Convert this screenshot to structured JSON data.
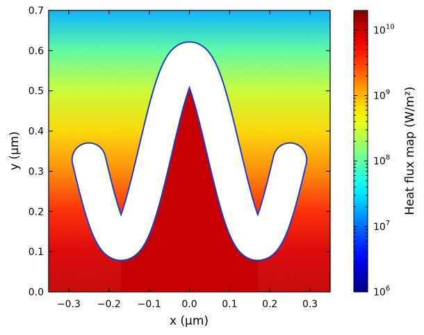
{
  "chart_data": {
    "type": "heatmap",
    "title": "",
    "xlabel": "x (µm)",
    "ylabel": "y (µm)",
    "xlim": [
      -0.35,
      0.35
    ],
    "ylim": [
      0.0,
      0.7
    ],
    "x_ticks": [
      -0.3,
      -0.2,
      -0.1,
      0.0,
      0.1,
      0.2,
      0.3
    ],
    "x_tick_labels": [
      "−0.3",
      "−0.2",
      "−0.1",
      "0.0",
      "0.1",
      "0.2",
      "0.3"
    ],
    "y_ticks": [
      0.0,
      0.1,
      0.2,
      0.3,
      0.4,
      0.5,
      0.6,
      0.7
    ],
    "y_tick_labels": [
      "0.0",
      "0.1",
      "0.2",
      "0.3",
      "0.4",
      "0.5",
      "0.6",
      "0.7"
    ],
    "grid": false,
    "colormap": "jet",
    "colorbar": {
      "label": "Heat flux map (W/m²)",
      "scale": "log",
      "range": [
        1000000.0,
        20000000000.0
      ],
      "ticks": [
        1000000.0,
        10000000.0,
        100000000.0,
        1000000000.0,
        10000000000.0
      ],
      "tick_base": "10",
      "tick_exponents": [
        "6",
        "7",
        "8",
        "9",
        "10"
      ]
    },
    "field_samples": {
      "description_units": "y in µm, heat flux in W/m²",
      "y": [
        0.0,
        0.1,
        0.2,
        0.3,
        0.4,
        0.5,
        0.6,
        0.7
      ],
      "heat_flux": [
        10000000000.0,
        8000000000.0,
        4000000000.0,
        1500000000.0,
        700000000.0,
        300000000.0,
        100000000.0,
        20000000.0
      ],
      "under_arch_heat_flux": 10000000000.0
    },
    "structure": {
      "shape": "white sinusoidal strip (no heat flux)",
      "centerline": "y = 0.35 + 0.23·cos(π·x/0.17)",
      "x_range": [
        -0.25,
        0.25
      ],
      "half_thickness": 0.04
    }
  }
}
